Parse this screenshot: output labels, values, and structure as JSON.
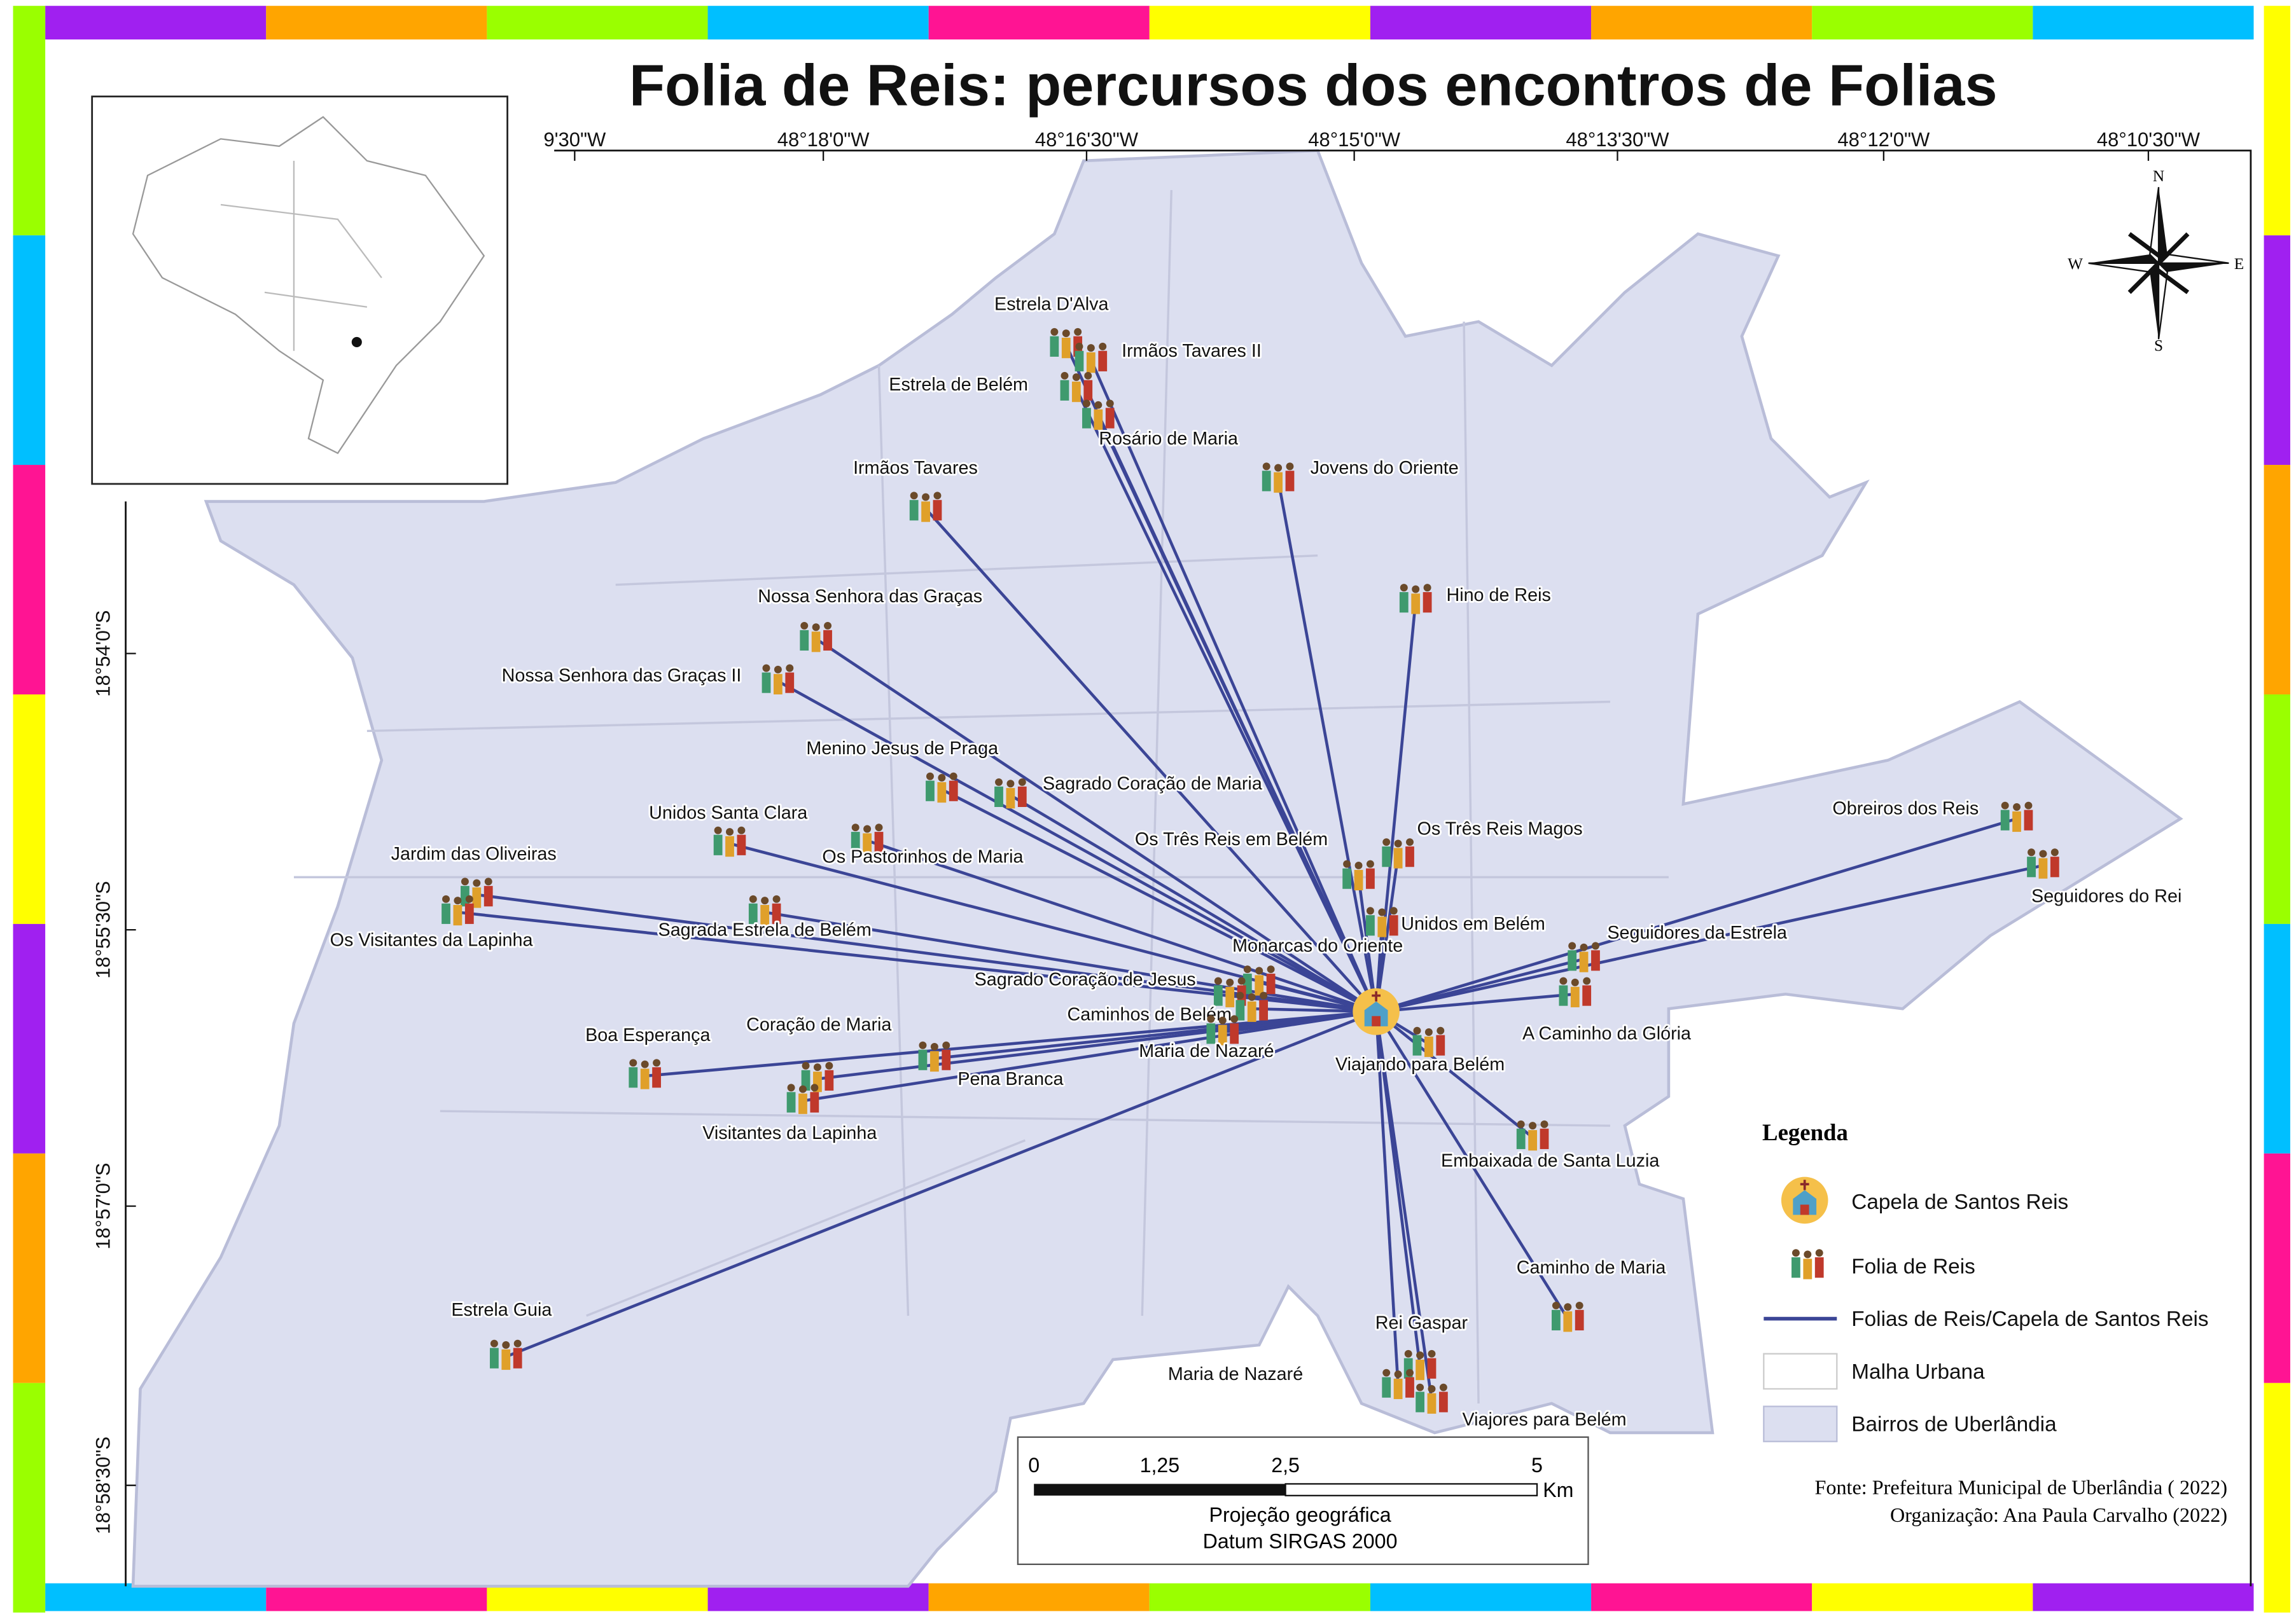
{
  "title": "Folia de Reis: percursos dos encontros de Folias",
  "longitude_labels": [
    "9'30\"W",
    "48°18'0\"W",
    "48°16'30\"W",
    "48°15'0\"W",
    "48°13'30\"W",
    "48°12'0\"W",
    "48°10'30\"W"
  ],
  "latitude_labels": [
    "18°54'0\"S",
    "18°55'30\"S",
    "18°57'0\"S",
    "18°58'30\"S"
  ],
  "folias": [
    "Estrela D'Alva",
    "Irmãos Tavares II",
    "Estrela de Belém",
    "Rosário de Maria",
    "Irmãos Tavares",
    "Jovens do Oriente",
    "Hino de Reis",
    "Nossa Senhora das Graças",
    "Nossa Senhora das Graças II",
    "Menino Jesus de Praga",
    "Sagrado Coração de Maria",
    "Unidos Santa Clara",
    "Os Pastorinhos de Maria",
    "Os Três Reis em Belém",
    "Os Três Reis Magos",
    "Jardim das Oliveiras",
    "Os Visitantes da Lapinha",
    "Sagrada Estrela de Belém",
    "Unidos em Belém",
    "Seguidores da Estrela",
    "Obreiros dos Reis",
    "Seguidores do Rei",
    "Monarcas do Oriente",
    "Sagrado Coração de Jesus",
    "Caminhos de Belém",
    "A Caminho da Glória",
    "Boa Esperança",
    "Coração de Maria",
    "Maria de Nazaré",
    "Viajando para Belém",
    "Pena Branca",
    "Visitantes da Lapinha",
    "Embaixada de Santa Luzia",
    "Caminho de Maria",
    "Estrela Guia",
    "Rei Gaspar",
    "Maria de Nazaré",
    "Viajores para Belém"
  ],
  "compass": [
    "N",
    "W",
    "E",
    "S"
  ],
  "legend": {
    "title": "Legenda",
    "items": [
      "Capela de Santos Reis",
      "Folia de Reis",
      "Folias de Reis/Capela de Santos Reis",
      "Malha Urbana",
      "Bairros de Uberlândia"
    ]
  },
  "scale_bar": {
    "ticks": [
      "0",
      "1,25",
      "2,5",
      "5"
    ],
    "unit": "Km",
    "projection": "Projeção geográfica",
    "datum": "Datum SIRGAS 2000"
  },
  "source": "Fonte: Prefeitura Municipal de Uberlândia ( 2022)",
  "organization": "Organização: Ana Paula Carvalho (2022)"
}
